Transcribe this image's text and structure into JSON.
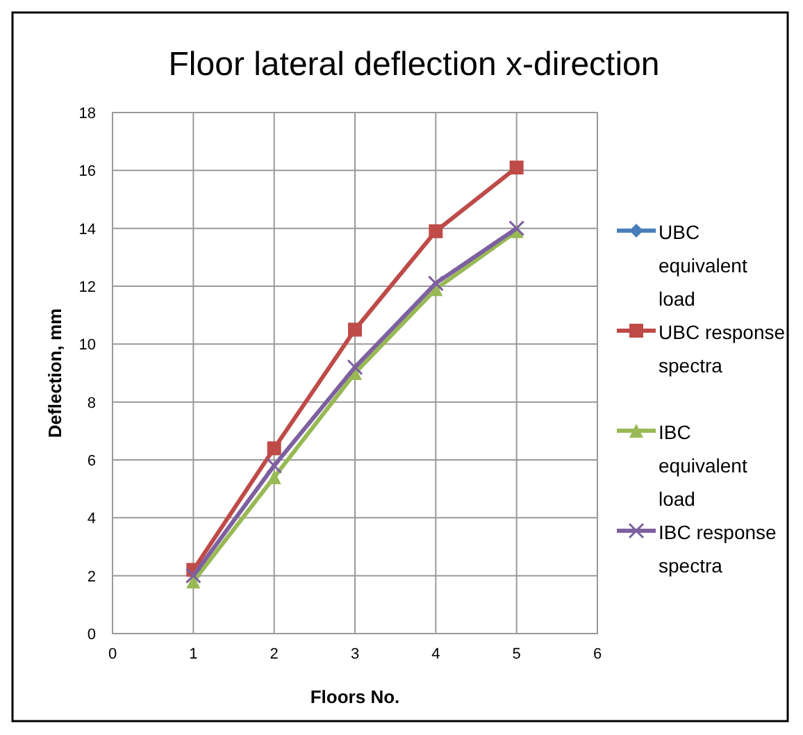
{
  "chart_data": {
    "type": "line",
    "title": "Floor lateral deflection x-direction",
    "xlabel": "Floors No.",
    "ylabel": "Deflection, mm",
    "x": [
      1,
      2,
      3,
      4,
      5
    ],
    "xlim": [
      0,
      6
    ],
    "xticks": [
      0,
      1,
      2,
      3,
      4,
      5,
      6
    ],
    "ylim": [
      0,
      18
    ],
    "yticks": [
      0,
      2,
      4,
      6,
      8,
      10,
      12,
      14,
      16,
      18
    ],
    "grid": true,
    "legend": "right",
    "series": [
      {
        "name": "UBC equivalent load",
        "color": "#4a7ebb",
        "marker": "diamond",
        "values": [
          null,
          null,
          null,
          null,
          null
        ]
      },
      {
        "name": "UBC response spectra",
        "color": "#be4b48",
        "marker": "square",
        "values": [
          2.2,
          6.4,
          10.5,
          13.9,
          16.1
        ]
      },
      {
        "name": "IBC equivalent load",
        "color": "#98b954",
        "marker": "triangle",
        "values": [
          1.8,
          5.4,
          9.0,
          11.9,
          13.9
        ]
      },
      {
        "name": "IBC response spectra",
        "color": "#7d60a0",
        "marker": "cross",
        "values": [
          2.0,
          5.8,
          9.2,
          12.1,
          14.0
        ]
      }
    ]
  }
}
